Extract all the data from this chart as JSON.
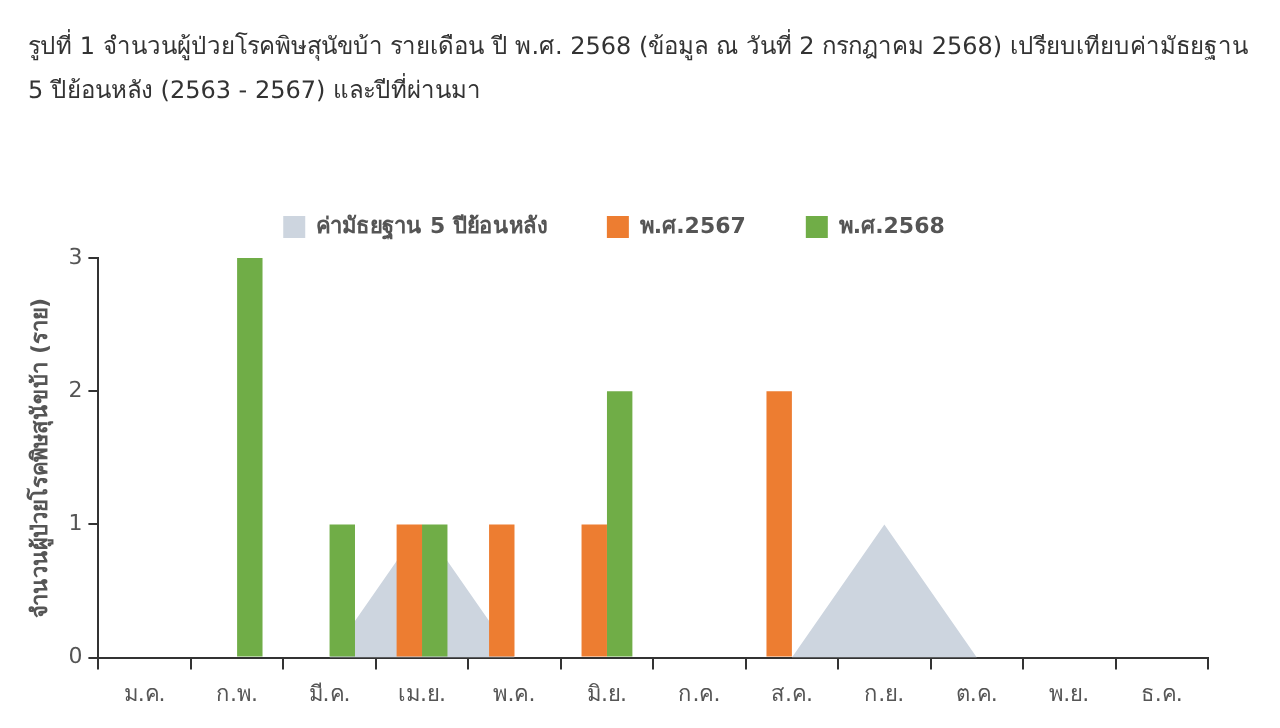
{
  "chart_data": {
    "type": "bar",
    "title": "รูปที่ 1 จำนวนผู้ป่วยโรคพิษสุนัขบ้า รายเดือน ปี พ.ศ. 2568 (ข้อมูล ณ วันที่ 2 กรกฎาคม 2568) เปรียบเทียบค่ามัธยฐาน 5 ปีย้อนหลัง (2563 - 2567) และปีที่ผ่านมา",
    "ylabel": "จำนวนผู้ป่วยโรคพิษสุนัขบ้า (ราย)",
    "categories": [
      "ม.ค.",
      "ก.พ.",
      "มี.ค.",
      "เม.ย.",
      "พ.ค.",
      "มิ.ย.",
      "ก.ค.",
      "ส.ค.",
      "ก.ย.",
      "ต.ค.",
      "พ.ย.",
      "ธ.ค."
    ],
    "series": [
      {
        "name": "ค่ามัธยฐาน 5 ปีย้อนหลัง",
        "type": "area",
        "color": "#cdd5df",
        "values": [
          0,
          0,
          0,
          1,
          0,
          0,
          0,
          0,
          1,
          0,
          0,
          0
        ]
      },
      {
        "name": "พ.ศ.2567",
        "color": "#ed7d31",
        "values": [
          0,
          0,
          0,
          1,
          1,
          1,
          0,
          2,
          0,
          0,
          0,
          0
        ]
      },
      {
        "name": "พ.ศ.2568",
        "color": "#70ad47",
        "values": [
          0,
          3,
          1,
          1,
          0,
          2,
          null,
          null,
          null,
          null,
          null,
          null
        ]
      }
    ],
    "ylim": [
      0,
      3
    ],
    "yticks": [
      0,
      1,
      2,
      3
    ],
    "grid": false,
    "legend": "top"
  }
}
